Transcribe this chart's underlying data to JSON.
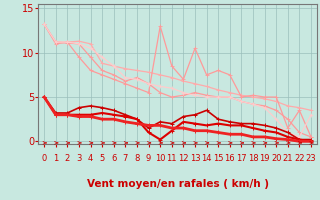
{
  "bg_color": "#c8e8e0",
  "grid_color": "#9bbfbb",
  "xlabel": "Vent moyen/en rafales ( km/h )",
  "xlabel_color": "#cc0000",
  "xlabel_fontsize": 7.5,
  "ylim": [
    -0.3,
    15.5
  ],
  "xlim": [
    -0.5,
    23.5
  ],
  "yticks": [
    0,
    5,
    10,
    15
  ],
  "xticks": [
    0,
    1,
    2,
    3,
    4,
    5,
    6,
    7,
    8,
    9,
    10,
    11,
    12,
    13,
    14,
    15,
    16,
    17,
    18,
    19,
    20,
    21,
    22,
    23
  ],
  "tick_color": "#cc0000",
  "tick_fontsize": 6,
  "lines_light": [
    {
      "x": [
        0,
        1,
        2,
        3,
        4,
        5,
        6,
        7,
        8,
        9,
        10,
        11,
        12,
        13,
        14,
        15,
        16,
        17,
        18,
        19,
        20,
        21,
        22,
        23
      ],
      "y": [
        13.2,
        11.2,
        11.2,
        11.3,
        11.0,
        8.8,
        8.5,
        8.2,
        8.0,
        7.8,
        7.5,
        7.2,
        6.8,
        6.5,
        6.2,
        5.8,
        5.5,
        5.2,
        5.0,
        4.8,
        4.5,
        4.0,
        3.8,
        3.5
      ],
      "color": "#ffaaaa",
      "lw": 0.9,
      "marker": "+"
    },
    {
      "x": [
        0,
        1,
        2,
        3,
        4,
        5,
        6,
        7,
        8,
        9,
        10,
        11,
        12,
        13,
        14,
        15,
        16,
        17,
        18,
        19,
        20,
        21,
        22,
        23
      ],
      "y": [
        13.2,
        11.2,
        11.1,
        11.0,
        9.5,
        8.0,
        7.5,
        6.8,
        7.2,
        6.5,
        5.5,
        5.0,
        5.2,
        5.5,
        5.2,
        5.0,
        5.0,
        4.5,
        4.2,
        4.0,
        3.5,
        2.5,
        1.0,
        0.5
      ],
      "color": "#ff9999",
      "lw": 0.9,
      "marker": "+"
    },
    {
      "x": [
        0,
        1,
        2,
        3,
        4,
        5,
        6,
        7,
        8,
        9,
        10,
        11,
        12,
        13,
        14,
        15,
        16,
        17,
        18,
        19,
        20,
        21,
        22,
        23
      ],
      "y": [
        13.2,
        11.0,
        11.2,
        9.5,
        8.0,
        7.5,
        7.0,
        6.5,
        6.0,
        5.5,
        13.0,
        8.5,
        7.0,
        10.5,
        7.5,
        8.0,
        7.5,
        5.0,
        5.2,
        5.0,
        5.0,
        1.5,
        3.5,
        0.5
      ],
      "color": "#ff9999",
      "lw": 0.9,
      "marker": "+"
    },
    {
      "x": [
        0,
        1,
        2,
        3,
        4,
        5,
        6,
        7,
        8,
        9,
        10,
        11,
        12,
        13,
        14,
        15,
        16,
        17,
        18,
        19,
        20,
        21,
        22,
        23
      ],
      "y": [
        13.2,
        11.2,
        11.2,
        11.0,
        10.5,
        9.5,
        8.5,
        7.2,
        7.0,
        6.5,
        6.2,
        6.0,
        5.5,
        5.2,
        5.0,
        5.0,
        5.0,
        4.5,
        4.2,
        3.8,
        2.5,
        1.0,
        0.5,
        3.0
      ],
      "color": "#ffcccc",
      "lw": 0.9,
      "marker": "+"
    }
  ],
  "lines_dark": [
    {
      "x": [
        0,
        1,
        2,
        3,
        4,
        5,
        6,
        7,
        8,
        9,
        10,
        11,
        12,
        13,
        14,
        15,
        16,
        17,
        18,
        19,
        20,
        21,
        22,
        23
      ],
      "y": [
        5.0,
        3.2,
        3.2,
        3.8,
        4.0,
        3.8,
        3.5,
        3.0,
        2.5,
        1.5,
        2.2,
        2.0,
        2.8,
        3.0,
        3.5,
        2.5,
        2.2,
        2.0,
        2.0,
        1.8,
        1.5,
        1.0,
        0.2,
        0.2
      ],
      "color": "#cc0000",
      "lw": 1.2,
      "marker": "+"
    },
    {
      "x": [
        0,
        1,
        2,
        3,
        4,
        5,
        6,
        7,
        8,
        9,
        10,
        11,
        12,
        13,
        14,
        15,
        16,
        17,
        18,
        19,
        20,
        21,
        22,
        23
      ],
      "y": [
        5.0,
        3.0,
        3.0,
        3.0,
        3.0,
        3.2,
        3.0,
        2.8,
        2.5,
        1.0,
        0.2,
        1.2,
        2.2,
        2.0,
        1.8,
        2.0,
        1.8,
        1.8,
        1.5,
        1.2,
        1.0,
        0.5,
        0.2,
        0.0
      ],
      "color": "#dd0000",
      "lw": 1.5,
      "marker": "+"
    },
    {
      "x": [
        0,
        1,
        2,
        3,
        4,
        5,
        6,
        7,
        8,
        9,
        10,
        11,
        12,
        13,
        14,
        15,
        16,
        17,
        18,
        19,
        20,
        21,
        22,
        23
      ],
      "y": [
        5.0,
        3.0,
        3.0,
        2.8,
        2.8,
        2.5,
        2.5,
        2.2,
        2.0,
        1.8,
        1.8,
        1.5,
        1.5,
        1.2,
        1.2,
        1.0,
        0.8,
        0.8,
        0.5,
        0.5,
        0.3,
        0.2,
        0.0,
        0.0
      ],
      "color": "#ee2222",
      "lw": 2.0,
      "marker": "+"
    }
  ]
}
